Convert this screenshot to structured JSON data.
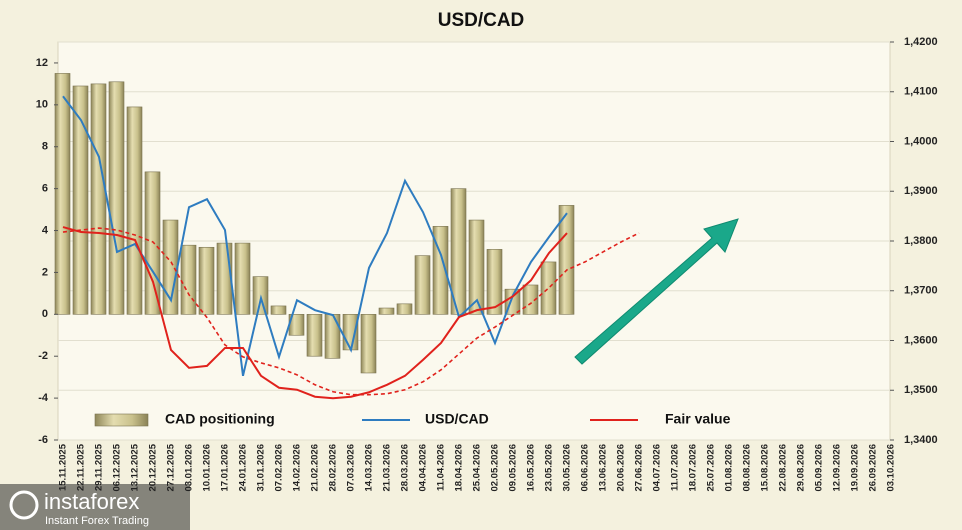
{
  "chart_data": {
    "type": "combo",
    "title": "USD/CAD",
    "categories": [
      "15.11.2025",
      "22.11.2025",
      "29.11.2025",
      "06.12.2025",
      "13.12.2025",
      "20.12.2025",
      "27.12.2025",
      "03.01.2026",
      "10.01.2026",
      "17.01.2026",
      "24.01.2026",
      "31.01.2026",
      "07.02.2026",
      "14.02.2026",
      "21.02.2026",
      "28.02.2026",
      "07.03.2026",
      "14.03.2026",
      "21.03.2026",
      "28.03.2026",
      "04.04.2026",
      "11.04.2026",
      "18.04.2026",
      "25.04.2026",
      "02.05.2026",
      "09.05.2026",
      "16.05.2026",
      "23.05.2026",
      "30.05.2026",
      "06.06.2026",
      "13.06.2026",
      "20.06.2026",
      "27.06.2026",
      "04.07.2026",
      "11.07.2026",
      "18.07.2026",
      "25.07.2026",
      "01.08.2026",
      "08.08.2026",
      "15.08.2026",
      "22.08.2026",
      "29.08.2026",
      "05.09.2026",
      "12.09.2026",
      "19.09.2026",
      "26.09.2026",
      "03.10.2026"
    ],
    "series": [
      {
        "name": "CAD positioning",
        "kind": "bar",
        "color": "#c9c18c",
        "values": [
          11.5,
          10.9,
          11.0,
          11.1,
          9.9,
          6.8,
          4.5,
          3.3,
          3.2,
          3.4,
          3.4,
          1.8,
          0.4,
          -1.0,
          -2.0,
          -2.1,
          -1.7,
          -2.8,
          0.3,
          0.5,
          2.8,
          4.2,
          6.0,
          4.5,
          3.1,
          1.2,
          1.4,
          2.5,
          5.2,
          null,
          null,
          null,
          null,
          null,
          null,
          null,
          null,
          null,
          null,
          null,
          null,
          null,
          null,
          null,
          null,
          null,
          null
        ]
      },
      {
        "name": "USD/CAD",
        "kind": "line",
        "axis": "y2",
        "color": "#2e7cc0",
        "values": [
          1.4091,
          1.4043,
          1.3969,
          1.3778,
          1.3794,
          1.3738,
          1.3681,
          1.3868,
          1.3884,
          1.3822,
          1.3529,
          1.3685,
          1.3567,
          1.3681,
          1.3661,
          1.3651,
          1.3581,
          1.3746,
          1.3816,
          1.3921,
          1.3858,
          1.3772,
          1.3647,
          1.3681,
          1.3595,
          1.3691,
          1.3758,
          1.3808,
          1.3856,
          null,
          null,
          null,
          null,
          null,
          null,
          null,
          null,
          null,
          null,
          null,
          null,
          null,
          null,
          null,
          null,
          null,
          null
        ]
      },
      {
        "name": "Fair value",
        "kind": "line",
        "axis": "y2",
        "color": "#e0221c",
        "values": [
          1.3828,
          1.3818,
          1.3816,
          1.3812,
          1.3802,
          1.3718,
          1.3581,
          1.3545,
          1.3549,
          1.3585,
          1.3585,
          1.3529,
          1.3505,
          1.3501,
          1.3487,
          1.3484,
          1.3487,
          1.3496,
          1.3511,
          1.3529,
          1.3561,
          1.3595,
          1.3647,
          1.3661,
          1.3667,
          1.3689,
          1.3721,
          1.3776,
          1.3816,
          null,
          null,
          null,
          null,
          null,
          null,
          null,
          null,
          null,
          null,
          null,
          null,
          null,
          null,
          null,
          null,
          null,
          null
        ]
      },
      {
        "kind": "line",
        "axis": "y2",
        "color": "#e0221c",
        "dashed": true,
        "values": [
          1.3818,
          1.3822,
          1.3826,
          1.3822,
          1.3812,
          1.3798,
          1.3758,
          1.3692,
          1.3646,
          1.3591,
          1.3567,
          1.3555,
          1.3545,
          1.3531,
          1.3511,
          1.3497,
          1.3491,
          1.3491,
          1.3493,
          1.3501,
          1.3517,
          1.3541,
          1.3573,
          1.3605,
          1.3627,
          1.3651,
          1.3675,
          1.3706,
          1.3742,
          1.3758,
          1.3778,
          1.3798,
          1.3816,
          null,
          null,
          null,
          null,
          null,
          null,
          null,
          null,
          null,
          null,
          null,
          null,
          null,
          null
        ]
      }
    ],
    "ylim": [
      -6,
      13
    ],
    "yticks": [
      -6,
      -4,
      -2,
      0,
      2,
      4,
      6,
      8,
      10,
      12
    ],
    "y2lim": [
      1.34,
      1.42
    ],
    "y2ticks": [
      {
        "value": 1.34,
        "label": "1,3400"
      },
      {
        "value": 1.35,
        "label": "1,3500"
      },
      {
        "value": 1.36,
        "label": "1,3600"
      },
      {
        "value": 1.37,
        "label": "1,3700"
      },
      {
        "value": 1.38,
        "label": "1,3800"
      },
      {
        "value": 1.39,
        "label": "1,3900"
      },
      {
        "value": 1.4,
        "label": "1,4000"
      },
      {
        "value": 1.41,
        "label": "1,4100"
      },
      {
        "value": 1.42,
        "label": "1,4200"
      }
    ],
    "grid": true,
    "legend": "bottom"
  },
  "logo": {
    "brand": "instaforex",
    "tagline": "Instant Forex Trading"
  }
}
